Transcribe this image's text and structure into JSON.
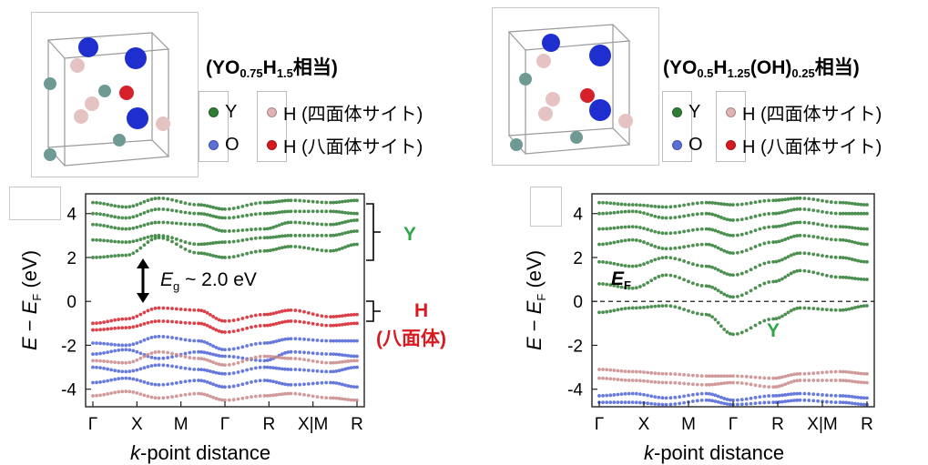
{
  "left_panel": {
    "formula": {
      "prefix": "(YO",
      "o_sub": "0.75",
      "mid": "H",
      "h_sub": "1.5",
      "suffix": "相当)"
    },
    "legend": [
      {
        "label": "Y",
        "color": "#2e7d32"
      },
      {
        "label": "O",
        "color": "#5b6fd6"
      },
      {
        "label": "H (四面体サイト)",
        "color": "#e0b4b4"
      },
      {
        "label": "H (八面体サイト)",
        "color": "#d71920"
      }
    ],
    "annotations": {
      "band_gap_symbol": "E",
      "band_gap_sub": "g",
      "band_gap_value": " ~ 2.0 eV",
      "y_label": "Y",
      "h_label": "H",
      "h_sublabel": "(八面体)"
    }
  },
  "right_panel": {
    "formula": {
      "prefix": "(YO",
      "o_sub": "0.5",
      "mid": "H",
      "h_sub": "1.25",
      "mid2": "(OH)",
      "oh_sub": "0.25",
      "suffix": "相当)"
    },
    "legend": [
      {
        "label": "Y",
        "color": "#2e7d32"
      },
      {
        "label": "O",
        "color": "#5b6fd6"
      },
      {
        "label": "H (四面体サイト)",
        "color": "#e0b4b4"
      },
      {
        "label": "H (八面体サイト)",
        "color": "#d71920"
      }
    ],
    "annotations": {
      "fermi_symbol": "E",
      "fermi_sub": "F",
      "y_label": "Y"
    }
  },
  "colors": {
    "Y": "#2e7d32",
    "O": "#4e63d6",
    "H_tet": "#c98a8a",
    "H_oct": "#d6202a",
    "annot_green": "#2ca84a",
    "annot_red": "#d71920"
  },
  "chart_data": [
    {
      "type": "scatter",
      "title": "",
      "xlabel": "k-point distance",
      "ylabel": "E − EF (eV)",
      "ylim": [
        -4.8,
        4.9
      ],
      "x_ticks": [
        "Γ",
        "X",
        "M",
        "Γ",
        "R",
        "X|M",
        "R"
      ],
      "y_ticks": [
        -4,
        -2,
        0,
        2,
        4
      ],
      "fermi_line": false,
      "series": [
        {
          "name": "Y",
          "bands": [
            [
              [
                0,
                2.0
              ],
              [
                0.5,
                2.1
              ],
              [
                1,
                2.9
              ],
              [
                1.6,
                2.2
              ],
              [
                2,
                2.0
              ],
              [
                2.6,
                2.3
              ],
              [
                3,
                2.5
              ],
              [
                3.6,
                2.3
              ],
              [
                4,
                2.6
              ]
            ],
            [
              [
                0,
                2.8
              ],
              [
                0.5,
                2.7
              ],
              [
                1,
                3.0
              ],
              [
                1.6,
                2.6
              ],
              [
                2,
                2.7
              ],
              [
                2.6,
                2.9
              ],
              [
                3,
                3.0
              ],
              [
                3.6,
                3.0
              ],
              [
                4,
                3.2
              ]
            ],
            [
              [
                0,
                3.5
              ],
              [
                0.5,
                3.3
              ],
              [
                1,
                3.6
              ],
              [
                1.6,
                3.5
              ],
              [
                2,
                3.2
              ],
              [
                2.6,
                3.3
              ],
              [
                3,
                3.6
              ],
              [
                3.6,
                3.5
              ],
              [
                4,
                3.7
              ]
            ],
            [
              [
                0,
                4.0
              ],
              [
                0.5,
                3.8
              ],
              [
                1,
                4.2
              ],
              [
                1.6,
                4.0
              ],
              [
                2,
                3.8
              ],
              [
                2.6,
                4.0
              ],
              [
                3,
                4.1
              ],
              [
                3.6,
                4.1
              ],
              [
                4,
                4.0
              ]
            ],
            [
              [
                0,
                4.5
              ],
              [
                0.5,
                4.3
              ],
              [
                1,
                4.7
              ],
              [
                1.6,
                4.4
              ],
              [
                2,
                4.2
              ],
              [
                2.6,
                4.5
              ],
              [
                3,
                4.6
              ],
              [
                3.6,
                4.5
              ],
              [
                4,
                4.6
              ]
            ]
          ]
        },
        {
          "name": "H (八面体サイト)",
          "bands": [
            [
              [
                0,
                -1.0
              ],
              [
                0.5,
                -0.8
              ],
              [
                1,
                -0.3
              ],
              [
                1.6,
                -0.4
              ],
              [
                2,
                -0.9
              ],
              [
                2.6,
                -0.6
              ],
              [
                3,
                -0.4
              ],
              [
                3.6,
                -0.7
              ],
              [
                4,
                -0.6
              ]
            ],
            [
              [
                0,
                -1.3
              ],
              [
                0.5,
                -1.2
              ],
              [
                1,
                -0.9
              ],
              [
                1.6,
                -1.0
              ],
              [
                2,
                -1.4
              ],
              [
                2.6,
                -1.1
              ],
              [
                3,
                -0.9
              ],
              [
                3.6,
                -1.1
              ],
              [
                4,
                -1.0
              ]
            ]
          ]
        },
        {
          "name": "O",
          "bands": [
            [
              [
                0,
                -1.9
              ],
              [
                0.5,
                -2.0
              ],
              [
                1,
                -1.6
              ],
              [
                1.6,
                -1.8
              ],
              [
                2,
                -2.2
              ],
              [
                2.6,
                -1.9
              ],
              [
                3,
                -1.7
              ],
              [
                3.6,
                -1.8
              ],
              [
                4,
                -1.8
              ]
            ],
            [
              [
                0,
                -2.4
              ],
              [
                0.5,
                -2.2
              ],
              [
                1,
                -2.6
              ],
              [
                1.6,
                -2.3
              ],
              [
                2,
                -2.5
              ],
              [
                2.6,
                -2.7
              ],
              [
                3,
                -2.3
              ],
              [
                3.6,
                -2.4
              ],
              [
                4,
                -2.5
              ]
            ],
            [
              [
                0,
                -3.0
              ],
              [
                0.5,
                -3.2
              ],
              [
                1,
                -2.9
              ],
              [
                1.6,
                -3.1
              ],
              [
                2,
                -3.3
              ],
              [
                2.6,
                -3.0
              ],
              [
                3,
                -3.1
              ],
              [
                3.6,
                -3.2
              ],
              [
                4,
                -3.0
              ]
            ],
            [
              [
                0,
                -3.7
              ],
              [
                0.5,
                -3.5
              ],
              [
                1,
                -3.8
              ],
              [
                1.6,
                -3.6
              ],
              [
                2,
                -3.9
              ],
              [
                2.6,
                -3.6
              ],
              [
                3,
                -3.8
              ],
              [
                3.6,
                -3.7
              ],
              [
                4,
                -3.9
              ]
            ]
          ]
        },
        {
          "name": "H (四面体サイト)",
          "bands": [
            [
              [
                0,
                -2.7
              ],
              [
                0.5,
                -2.8
              ],
              [
                1,
                -2.3
              ],
              [
                1.6,
                -2.6
              ],
              [
                2,
                -2.9
              ],
              [
                2.6,
                -2.5
              ],
              [
                3,
                -2.6
              ],
              [
                3.6,
                -2.8
              ],
              [
                4,
                -2.7
              ]
            ],
            [
              [
                0,
                -4.3
              ],
              [
                0.5,
                -4.1
              ],
              [
                1,
                -4.4
              ],
              [
                1.6,
                -4.2
              ],
              [
                2,
                -4.5
              ],
              [
                2.6,
                -4.3
              ],
              [
                3,
                -4.2
              ],
              [
                3.6,
                -4.4
              ],
              [
                4,
                -4.5
              ]
            ]
          ]
        }
      ]
    },
    {
      "type": "scatter",
      "title": "",
      "xlabel": "k-point distance",
      "ylabel": "E − EF (eV)",
      "ylim": [
        -4.8,
        4.9
      ],
      "x_ticks": [
        "Γ",
        "X",
        "M",
        "Γ",
        "R",
        "X|M",
        "R"
      ],
      "y_ticks": [
        -4,
        -2,
        0,
        2,
        4
      ],
      "fermi_line": true,
      "series": [
        {
          "name": "Y",
          "bands": [
            [
              [
                0,
                -0.5
              ],
              [
                0.5,
                -0.3
              ],
              [
                1,
                -0.2
              ],
              [
                1.6,
                -0.6
              ],
              [
                2,
                -1.5
              ],
              [
                2.6,
                -0.8
              ],
              [
                3,
                -0.3
              ],
              [
                3.6,
                -0.4
              ],
              [
                4,
                -0.2
              ]
            ],
            [
              [
                0,
                0.8
              ],
              [
                0.5,
                0.6
              ],
              [
                1,
                1.2
              ],
              [
                1.6,
                0.7
              ],
              [
                2,
                0.2
              ],
              [
                2.6,
                0.9
              ],
              [
                3,
                1.4
              ],
              [
                3.6,
                1.1
              ],
              [
                4,
                1.0
              ]
            ],
            [
              [
                0,
                1.8
              ],
              [
                0.5,
                1.6
              ],
              [
                1,
                2.0
              ],
              [
                1.6,
                1.6
              ],
              [
                2,
                1.2
              ],
              [
                2.6,
                1.8
              ],
              [
                3,
                2.2
              ],
              [
                3.6,
                2.0
              ],
              [
                4,
                1.8
              ]
            ],
            [
              [
                0,
                2.6
              ],
              [
                0.5,
                2.8
              ],
              [
                1,
                2.4
              ],
              [
                1.6,
                2.6
              ],
              [
                2,
                2.2
              ],
              [
                2.6,
                2.7
              ],
              [
                3,
                3.0
              ],
              [
                3.6,
                2.8
              ],
              [
                4,
                2.6
              ]
            ],
            [
              [
                0,
                3.3
              ],
              [
                0.5,
                3.4
              ],
              [
                1,
                3.1
              ],
              [
                1.6,
                3.3
              ],
              [
                2,
                3.0
              ],
              [
                2.6,
                3.4
              ],
              [
                3,
                3.6
              ],
              [
                3.6,
                3.4
              ],
              [
                4,
                3.3
              ]
            ],
            [
              [
                0,
                4.0
              ],
              [
                0.5,
                4.1
              ],
              [
                1,
                3.8
              ],
              [
                1.6,
                4.0
              ],
              [
                2,
                3.7
              ],
              [
                2.6,
                4.0
              ],
              [
                3,
                4.2
              ],
              [
                3.6,
                4.0
              ],
              [
                4,
                4.0
              ]
            ],
            [
              [
                0,
                4.5
              ],
              [
                0.5,
                4.4
              ],
              [
                1,
                4.3
              ],
              [
                1.6,
                4.5
              ],
              [
                2,
                4.4
              ],
              [
                2.6,
                4.6
              ],
              [
                3,
                4.7
              ],
              [
                3.6,
                4.5
              ],
              [
                4,
                4.4
              ]
            ]
          ]
        },
        {
          "name": "H (四面体サイト)",
          "bands": [
            [
              [
                0,
                -3.1
              ],
              [
                0.5,
                -3.2
              ],
              [
                1,
                -3.3
              ],
              [
                1.6,
                -3.4
              ],
              [
                2,
                -3.4
              ],
              [
                2.6,
                -3.5
              ],
              [
                3,
                -3.3
              ],
              [
                3.6,
                -3.2
              ],
              [
                4,
                -3.3
              ]
            ],
            [
              [
                0,
                -3.5
              ],
              [
                0.5,
                -3.6
              ],
              [
                1,
                -3.7
              ],
              [
                1.6,
                -3.8
              ],
              [
                2,
                -3.7
              ],
              [
                2.6,
                -3.9
              ],
              [
                3,
                -3.6
              ],
              [
                3.6,
                -3.6
              ],
              [
                4,
                -3.7
              ]
            ]
          ]
        },
        {
          "name": "O",
          "bands": [
            [
              [
                0,
                -4.3
              ],
              [
                0.5,
                -4.2
              ],
              [
                1,
                -4.4
              ],
              [
                1.6,
                -4.2
              ],
              [
                2,
                -4.5
              ],
              [
                2.6,
                -4.3
              ],
              [
                3,
                -4.2
              ],
              [
                3.6,
                -4.3
              ],
              [
                4,
                -4.4
              ]
            ],
            [
              [
                0,
                -4.6
              ],
              [
                0.5,
                -4.6
              ],
              [
                1,
                -4.7
              ],
              [
                1.6,
                -4.5
              ],
              [
                2,
                -4.7
              ],
              [
                2.6,
                -4.6
              ],
              [
                3,
                -4.5
              ],
              [
                3.6,
                -4.6
              ],
              [
                4,
                -4.7
              ]
            ]
          ]
        }
      ]
    }
  ]
}
